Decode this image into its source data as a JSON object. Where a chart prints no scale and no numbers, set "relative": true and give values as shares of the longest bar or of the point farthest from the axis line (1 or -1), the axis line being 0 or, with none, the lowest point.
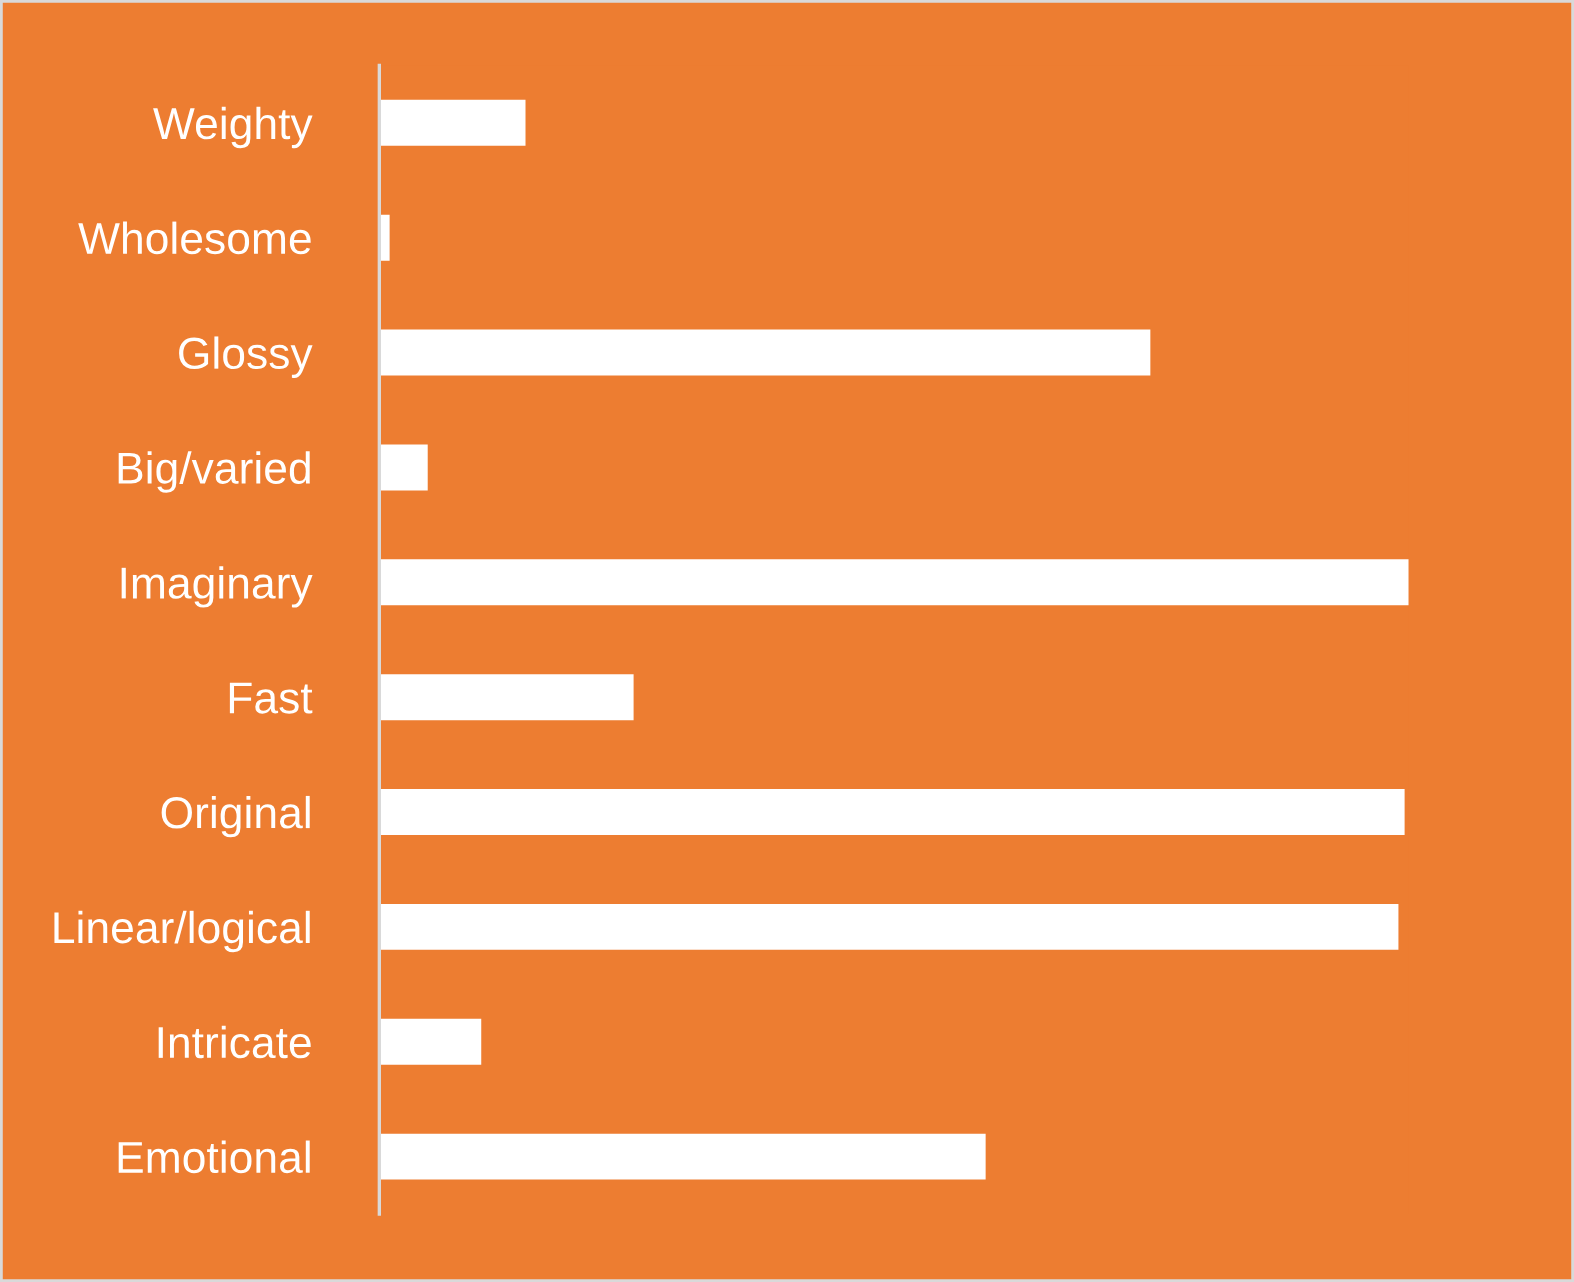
{
  "chart_data": {
    "type": "bar",
    "orientation": "horizontal",
    "relative": true,
    "categories": [
      "Weighty",
      "Wholesome",
      "Glossy",
      "Big/varied",
      "Imaginary",
      "Fast",
      "Original",
      "Linear/logical",
      "Intricate",
      "Emotional"
    ],
    "values": [
      0.142,
      0.01,
      0.749,
      0.047,
      1,
      0.247,
      0.996,
      0.99,
      0.099,
      0.589
    ],
    "color": "#ffffff",
    "legend": false
  }
}
